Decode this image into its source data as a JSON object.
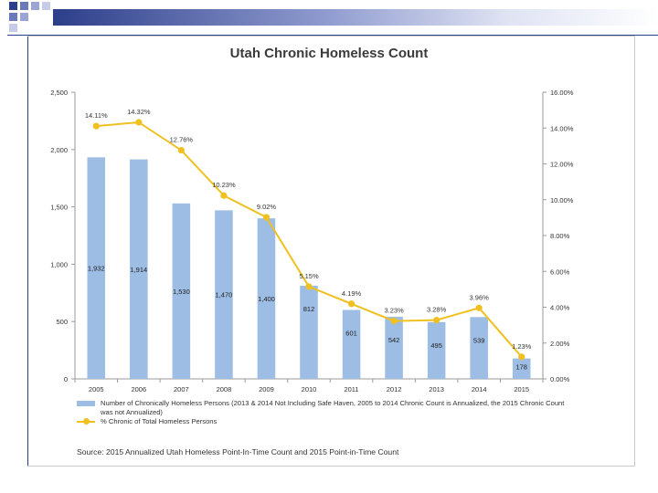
{
  "chart_data": {
    "type": "bar",
    "title": "Utah Chronic Homeless Count",
    "categories": [
      "2005",
      "2006",
      "2007",
      "2008",
      "2009",
      "2010",
      "2011",
      "2012",
      "2013",
      "2014",
      "2015"
    ],
    "series": [
      {
        "name": "Number of Chronically Homeless Persons (2013 & 2014 Not Including Safe Haven, 2005 to 2014 Chronic Count is Annualized, the 2015 Chronic Count was not Annualized)",
        "type": "bar",
        "axis": "left",
        "values": [
          1932,
          1914,
          1530,
          1470,
          1400,
          812,
          601,
          542,
          495,
          539,
          178
        ],
        "labels": [
          "1,932",
          "1,914",
          "1,530",
          "1,470",
          "1,400",
          "812",
          "601",
          "542",
          "495",
          "539",
          "178"
        ],
        "color": "#9dbde4"
      },
      {
        "name": "% Chronic of Total Homeless Persons",
        "type": "line",
        "axis": "right",
        "values": [
          14.11,
          14.32,
          12.76,
          10.23,
          9.02,
          5.15,
          4.19,
          3.23,
          3.28,
          3.96,
          1.23
        ],
        "labels": [
          "14.11%",
          "14.32%",
          "12.76%",
          "10.23%",
          "9.02%",
          "5.15%",
          "4.19%",
          "3.23%",
          "3.28%",
          "3.96%",
          "1.23%"
        ],
        "color": "#f0c020"
      }
    ],
    "y_left": {
      "min": 0,
      "max": 2500,
      "ticks": [
        0,
        500,
        1000,
        1500,
        2000,
        2500
      ],
      "tick_labels": [
        "0",
        "500",
        "1,000",
        "1,500",
        "2,000",
        "2,500"
      ]
    },
    "y_right": {
      "min": 0,
      "max": 16,
      "ticks": [
        0,
        2,
        4,
        6,
        8,
        10,
        12,
        14,
        16
      ],
      "tick_labels": [
        "0.00%",
        "2.00%",
        "4.00%",
        "6.00%",
        "8.00%",
        "10.00%",
        "12.00%",
        "14.00%",
        "16.00%"
      ]
    },
    "legend_placement": "bottom",
    "source": "Source: 2015 Annualized Utah Homeless Point-In-Time Count and 2015 Point-in-Time Count"
  },
  "legend": {
    "bars": "Number of Chronically Homeless Persons (2013 & 2014 Not Including Safe Haven, 2005 to 2014 Chronic Count is Annualized, the 2015 Chronic Count was not Annualized)",
    "line": "% Chronic of Total Homeless Persons"
  },
  "colors": {
    "bar": "#9dbde4",
    "line": "#f0c020",
    "accent": "#2d3e8a"
  }
}
